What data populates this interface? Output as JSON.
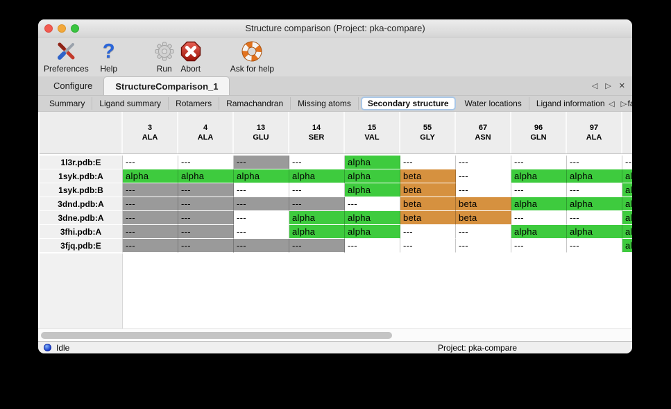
{
  "window": {
    "title": "Structure comparison (Project: pka-compare)"
  },
  "icons": {
    "prev": "◁",
    "next": "▷",
    "close": "✕"
  },
  "toolbar": {
    "items": [
      {
        "label": "Preferences",
        "icon": "tools-icon"
      },
      {
        "label": "Help",
        "icon": "question-mark-icon"
      },
      {
        "label": "Run",
        "icon": "gear-icon",
        "disabled": true
      },
      {
        "label": "Abort",
        "icon": "stop-x-icon"
      },
      {
        "label": "Ask for help",
        "icon": "lifebuoy-icon"
      }
    ]
  },
  "main_tabs": {
    "tabs": [
      {
        "label": "Configure",
        "selected": false
      },
      {
        "label": "StructureComparison_1",
        "selected": true
      }
    ]
  },
  "sub_tabs": {
    "tabs": [
      {
        "label": "Summary",
        "selected": false
      },
      {
        "label": "Ligand summary",
        "selected": false
      },
      {
        "label": "Rotamers",
        "selected": false
      },
      {
        "label": "Ramachandran",
        "selected": false
      },
      {
        "label": "Missing atoms",
        "selected": false
      },
      {
        "label": "Secondary structure",
        "selected": true
      },
      {
        "label": "Water locations",
        "selected": false
      },
      {
        "label": "Ligand information",
        "selected": false
      },
      {
        "label": "B-factors",
        "selected": false
      }
    ]
  },
  "table": {
    "columns": [
      {
        "num": "3",
        "res": "ALA"
      },
      {
        "num": "4",
        "res": "ALA"
      },
      {
        "num": "13",
        "res": "GLU"
      },
      {
        "num": "14",
        "res": "SER"
      },
      {
        "num": "15",
        "res": "VAL"
      },
      {
        "num": "55",
        "res": "GLY"
      },
      {
        "num": "67",
        "res": "ASN"
      },
      {
        "num": "96",
        "res": "GLN"
      },
      {
        "num": "97",
        "res": "ALA"
      },
      {
        "num": "",
        "res": ""
      }
    ],
    "rows": [
      {
        "label": "1l3r.pdb:E",
        "cells": [
          [
            "---",
            "blank"
          ],
          [
            "---",
            "blank"
          ],
          [
            "---",
            "missing"
          ],
          [
            "---",
            "blank"
          ],
          [
            "alpha",
            "alpha"
          ],
          [
            "---",
            "blank"
          ],
          [
            "---",
            "blank"
          ],
          [
            "---",
            "blank"
          ],
          [
            "---",
            "blank"
          ],
          [
            "---",
            "blank"
          ]
        ]
      },
      {
        "label": "1syk.pdb:A",
        "cells": [
          [
            "alpha",
            "alpha"
          ],
          [
            "alpha",
            "alpha"
          ],
          [
            "alpha",
            "alpha"
          ],
          [
            "alpha",
            "alpha"
          ],
          [
            "alpha",
            "alpha"
          ],
          [
            "beta",
            "beta"
          ],
          [
            "---",
            "blank"
          ],
          [
            "alpha",
            "alpha"
          ],
          [
            "alpha",
            "alpha"
          ],
          [
            "alpha",
            "alpha"
          ]
        ]
      },
      {
        "label": "1syk.pdb:B",
        "cells": [
          [
            "---",
            "missing"
          ],
          [
            "---",
            "missing"
          ],
          [
            "---",
            "blank"
          ],
          [
            "---",
            "blank"
          ],
          [
            "alpha",
            "alpha"
          ],
          [
            "beta",
            "beta"
          ],
          [
            "---",
            "blank"
          ],
          [
            "---",
            "blank"
          ],
          [
            "---",
            "blank"
          ],
          [
            "alpha",
            "alpha"
          ]
        ]
      },
      {
        "label": "3dnd.pdb:A",
        "cells": [
          [
            "---",
            "missing"
          ],
          [
            "---",
            "missing"
          ],
          [
            "---",
            "missing"
          ],
          [
            "---",
            "missing"
          ],
          [
            "---",
            "blank"
          ],
          [
            "beta",
            "beta"
          ],
          [
            "beta",
            "beta"
          ],
          [
            "alpha",
            "alpha"
          ],
          [
            "alpha",
            "alpha"
          ],
          [
            "alpha",
            "alpha"
          ]
        ]
      },
      {
        "label": "3dne.pdb:A",
        "cells": [
          [
            "---",
            "missing"
          ],
          [
            "---",
            "missing"
          ],
          [
            "---",
            "blank"
          ],
          [
            "alpha",
            "alpha"
          ],
          [
            "alpha",
            "alpha"
          ],
          [
            "beta",
            "beta"
          ],
          [
            "beta",
            "beta"
          ],
          [
            "---",
            "blank"
          ],
          [
            "---",
            "blank"
          ],
          [
            "alpha",
            "alpha"
          ]
        ]
      },
      {
        "label": "3fhi.pdb:A",
        "cells": [
          [
            "---",
            "missing"
          ],
          [
            "---",
            "missing"
          ],
          [
            "---",
            "blank"
          ],
          [
            "alpha",
            "alpha"
          ],
          [
            "alpha",
            "alpha"
          ],
          [
            "---",
            "blank"
          ],
          [
            "---",
            "blank"
          ],
          [
            "alpha",
            "alpha"
          ],
          [
            "alpha",
            "alpha"
          ],
          [
            "alpha",
            "alpha"
          ]
        ]
      },
      {
        "label": "3fjq.pdb:E",
        "cells": [
          [
            "---",
            "missing"
          ],
          [
            "---",
            "missing"
          ],
          [
            "---",
            "missing"
          ],
          [
            "---",
            "missing"
          ],
          [
            "---",
            "blank"
          ],
          [
            "---",
            "blank"
          ],
          [
            "---",
            "blank"
          ],
          [
            "---",
            "blank"
          ],
          [
            "---",
            "blank"
          ],
          [
            "alpha",
            "alpha"
          ]
        ]
      }
    ]
  },
  "colors": {
    "alpha": "#3ECB3E",
    "beta": "#D6913F",
    "missing": "#9A9A9A",
    "blank": "#FFFFFF"
  },
  "status_bar": {
    "status": "Idle",
    "project": "Project: pka-compare"
  }
}
